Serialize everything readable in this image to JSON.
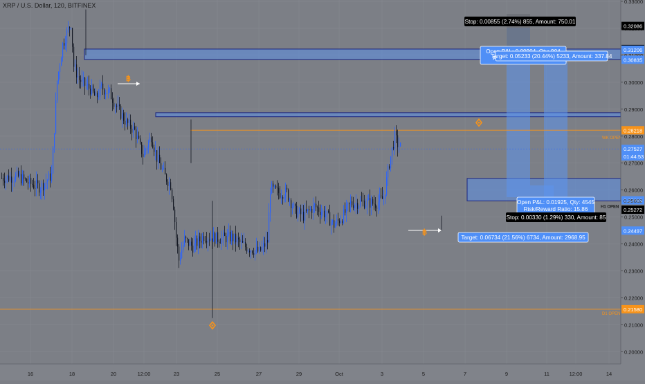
{
  "symbol": "XRP / U.S. Dollar, 120, BITFINEX",
  "colors": {
    "background": "#7c7f86",
    "axis_bg": "#80838a",
    "grid": "#868990",
    "text": "#1a1a1a",
    "candle_up": "#2962ff",
    "candle_down": "#131722",
    "zone_fill": "#5b8fe8",
    "zone_border": "#1a237e",
    "orange": "#f7931a",
    "target_label": "#4f8ff7",
    "stop_label": "#000000",
    "position_band": "#5b93ef"
  },
  "chart_data": {
    "type": "candlestick",
    "title": "XRP / U.S. Dollar, 120, BITFINEX",
    "ylim": [
      0.1955,
      0.3305
    ],
    "x_ticks": [
      "16",
      "18",
      "20",
      "12:00",
      "23",
      "25",
      "27",
      "29",
      "Oct",
      "3",
      "5",
      "7",
      "9",
      "11",
      "12:00",
      "14"
    ],
    "y_ticks": [
      "0.33000",
      "0.32000",
      "0.31000",
      "0.30000",
      "0.29000",
      "0.28000",
      "0.27000",
      "0.26000",
      "0.25000",
      "0.24000",
      "0.23000",
      "0.22000",
      "0.21000",
      "0.20000"
    ],
    "price_labels": [
      {
        "value": 0.32086,
        "text": "0.32086",
        "style": "dark"
      },
      {
        "value": 0.31231,
        "text": "0.31231",
        "style": "dark"
      },
      {
        "value": 0.31206,
        "text": "0.31206",
        "style": "blue"
      },
      {
        "value": 0.30835,
        "text": "0.30835",
        "style": "blue"
      },
      {
        "value": 0.28218,
        "text": "0.28218",
        "style": "orange"
      },
      {
        "value": 0.27527,
        "text": "0.27527",
        "style": "blue"
      },
      {
        "value": 0.2725,
        "text": "01:44:53",
        "style": "blue"
      },
      {
        "value": 0.25619,
        "text": "0.25619",
        "style": "blue"
      },
      {
        "value": 0.25602,
        "text": "0.25602",
        "style": "none"
      },
      {
        "value": 0.25272,
        "text": "0.25272",
        "style": "dark"
      },
      {
        "value": 0.24497,
        "text": "0.24497",
        "style": "blue"
      },
      {
        "value": 0.2158,
        "text": "0.21580",
        "style": "orange"
      }
    ],
    "line_labels": {
      "w_open": "WK OPEN",
      "h1_open": "H1 OPEN",
      "d1_open": "D1 OPEN"
    },
    "zones": [
      {
        "name": "supply-zone-top",
        "top": 0.3123,
        "bottom": 0.3084
      },
      {
        "name": "supply-zone-mid",
        "top": 0.2887,
        "bottom": 0.2872
      },
      {
        "name": "demand-zone-current",
        "top": 0.2643,
        "bottom": 0.256
      }
    ],
    "levels": [
      {
        "name": "weekly-open",
        "value": 0.2822,
        "color": "orange"
      },
      {
        "name": "d1-open",
        "value": 0.2158,
        "color": "orange"
      },
      {
        "name": "current-price-line",
        "value": 0.27527,
        "color": "blue"
      }
    ],
    "candles": {
      "count": 340,
      "anchors": [
        [
          0,
          0.2645
        ],
        [
          12,
          0.265
        ],
        [
          20,
          0.2625
        ],
        [
          28,
          0.261
        ],
        [
          36,
          0.2655
        ],
        [
          40,
          0.3005
        ],
        [
          44,
          0.314
        ],
        [
          48,
          0.3195
        ],
        [
          50,
          0.322
        ],
        [
          52,
          0.306
        ],
        [
          56,
          0.301
        ],
        [
          60,
          0.299
        ],
        [
          64,
          0.2975
        ],
        [
          68,
          0.294
        ],
        [
          72,
          0.298
        ],
        [
          78,
          0.296
        ],
        [
          84,
          0.29
        ],
        [
          90,
          0.285
        ],
        [
          96,
          0.282
        ],
        [
          102,
          0.273
        ],
        [
          108,
          0.28
        ],
        [
          112,
          0.272
        ],
        [
          118,
          0.265
        ],
        [
          122,
          0.262
        ],
        [
          124,
          0.2545
        ],
        [
          126,
          0.2425
        ],
        [
          128,
          0.234
        ],
        [
          132,
          0.2415
        ],
        [
          138,
          0.239
        ],
        [
          146,
          0.243
        ],
        [
          156,
          0.242
        ],
        [
          166,
          0.2425
        ],
        [
          176,
          0.239
        ],
        [
          186,
          0.237
        ],
        [
          192,
          0.241
        ],
        [
          194,
          0.2605
        ],
        [
          200,
          0.259
        ],
        [
          206,
          0.259
        ],
        [
          212,
          0.252
        ],
        [
          218,
          0.2505
        ],
        [
          226,
          0.254
        ],
        [
          234,
          0.251
        ],
        [
          240,
          0.247
        ],
        [
          246,
          0.25
        ],
        [
          252,
          0.255
        ],
        [
          262,
          0.2555
        ],
        [
          270,
          0.255
        ],
        [
          276,
          0.257
        ],
        [
          280,
          0.27
        ],
        [
          284,
          0.28
        ],
        [
          286,
          0.277
        ],
        [
          288,
          0.276
        ]
      ]
    },
    "long_positions": [
      {
        "name": "long-1",
        "entry": 0.2984,
        "target": 0.30835,
        "icon_price": 0.3
      },
      {
        "name": "long-2",
        "entry": 0.24497,
        "target": 0.25272,
        "icon_price": 0.2445
      }
    ],
    "markers": [
      {
        "name": "diamond-low",
        "price": 0.2098
      },
      {
        "name": "diamond-high",
        "price": 0.285
      }
    ]
  },
  "annotations": {
    "stop_top": "Stop: 0.00855 (2.74%) 855, Amount: 750.01",
    "open_pl_top": "Open P&L: 0.00904, Qty: 904",
    "rr_top": "Risk/Reward Ratio: 6.18",
    "target_top": "Target: 0.05233 (20.44%) 5233, Amount: 337.84",
    "open_pl_bottom": "Open P&L: 0.01925, Qty: 4545",
    "rr_bottom": "Risk/Reward Ratio: 15.86",
    "stop_bottom": "Stop: 0.00330 (1.29%) 330, Amount: 85",
    "target_bottom": "Target: 0.06734 (21.56%) 6734, Amount: 2968.95"
  }
}
